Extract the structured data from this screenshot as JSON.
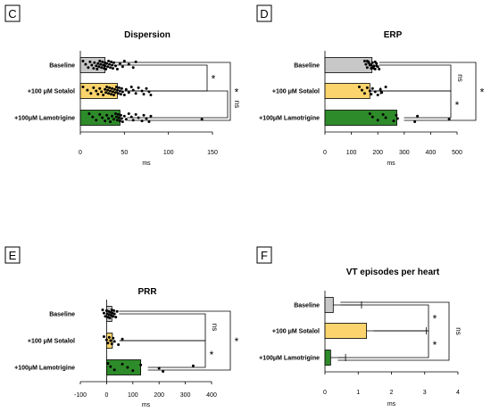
{
  "colors": {
    "baseline": "#c8c8c8",
    "sotalol": "#fbd46d",
    "lamotrigine": "#2e8b2a",
    "points": "#000000"
  },
  "chart_data": [
    {
      "id": "C",
      "panel_letter": "C",
      "type": "bar",
      "orientation": "horizontal",
      "title": "Dispersion",
      "xlabel": "ms",
      "xlim": [
        0,
        150
      ],
      "xticks": [
        "0",
        "50",
        "100",
        "150"
      ],
      "categories": [
        "Baseline",
        "+100 μM Sotalol",
        "+100μM Lamotrigine"
      ],
      "values": [
        28,
        42,
        45
      ],
      "errors": [
        0,
        0,
        0
      ],
      "points": [
        [
          3,
          6,
          9,
          11,
          13,
          15,
          16,
          18,
          19,
          20,
          21,
          22,
          23,
          24,
          25,
          26,
          27,
          28,
          28,
          29,
          30,
          31,
          32,
          33,
          34,
          35,
          36,
          37,
          38,
          40,
          42,
          45,
          48,
          50,
          55,
          60,
          63
        ],
        [
          3,
          8,
          12,
          15,
          18,
          20,
          22,
          24,
          26,
          28,
          29,
          30,
          31,
          32,
          33,
          34,
          35,
          36,
          37,
          38,
          39,
          40,
          41,
          42,
          43,
          44,
          45,
          46,
          47,
          48,
          50,
          52,
          55,
          58,
          60,
          63,
          66,
          70,
          72,
          75,
          78,
          80
        ],
        [
          10,
          14,
          18,
          22,
          25,
          28,
          30,
          32,
          34,
          36,
          38,
          40,
          41,
          42,
          43,
          44,
          45,
          46,
          47,
          48,
          50,
          52,
          55,
          58,
          60,
          63,
          66,
          70,
          72,
          75,
          78,
          80,
          138
        ]
      ],
      "comparisons": [
        {
          "label": "*",
          "pair": [
            0,
            1
          ]
        },
        {
          "label": "ns",
          "pair": [
            1,
            2
          ]
        },
        {
          "label": "*",
          "pair": [
            0,
            2
          ]
        }
      ]
    },
    {
      "id": "D",
      "panel_letter": "D",
      "type": "bar",
      "orientation": "horizontal",
      "title": "ERP",
      "xlabel": "ms",
      "xlim": [
        0,
        500
      ],
      "xticks": [
        "0",
        "100",
        "200",
        "300",
        "400",
        "500"
      ],
      "categories": [
        "Baseline",
        "+100 μM Sotalol",
        "+100μM Lamotrigine"
      ],
      "values": [
        178,
        170,
        272
      ],
      "errors": [
        0,
        40,
        0
      ],
      "points": [
        [
          150,
          155,
          160,
          165,
          170,
          175,
          180,
          185,
          190,
          195,
          200,
          160,
          170,
          180,
          190,
          175,
          185,
          165,
          195,
          205
        ],
        [
          130,
          140,
          150,
          160,
          170,
          175,
          180,
          190,
          200,
          210,
          215,
          230
        ],
        [
          170,
          180,
          200,
          220,
          230,
          260,
          270,
          275,
          340,
          350,
          470
        ]
      ],
      "comparisons": [
        {
          "label": "ns",
          "pair": [
            0,
            1
          ]
        },
        {
          "label": "*",
          "pair": [
            1,
            2
          ]
        },
        {
          "label": "*",
          "pair": [
            0,
            2
          ]
        }
      ]
    },
    {
      "id": "E",
      "panel_letter": "E",
      "type": "bar",
      "orientation": "horizontal",
      "title": "PRR",
      "xlabel": "ms",
      "xlim": [
        -100,
        400
      ],
      "xticks": [
        "-100",
        "0",
        "100",
        "200",
        "300",
        "400"
      ],
      "categories": [
        "Baseline",
        "+100 μM Sotalol",
        "+100μM Lamotrigine"
      ],
      "values": [
        20,
        22,
        130
      ],
      "errors": [
        0,
        0,
        0
      ],
      "points": [
        [
          -15,
          -10,
          -5,
          0,
          2,
          5,
          8,
          10,
          12,
          15,
          18,
          20,
          22,
          25,
          28,
          30,
          35,
          40
        ],
        [
          -10,
          0,
          5,
          10,
          15,
          20,
          25,
          30,
          45,
          60
        ],
        [
          5,
          15,
          30,
          60,
          80,
          100,
          130,
          200,
          215,
          330
        ]
      ],
      "comparisons": [
        {
          "label": "ns",
          "pair": [
            0,
            1
          ]
        },
        {
          "label": "*",
          "pair": [
            1,
            2
          ]
        },
        {
          "label": "*",
          "pair": [
            0,
            2
          ]
        }
      ]
    },
    {
      "id": "F",
      "panel_letter": "F",
      "type": "bar",
      "orientation": "horizontal",
      "title": "VT episodes per heart",
      "xlabel": "ms",
      "xlim": [
        0,
        4
      ],
      "xticks": [
        "0",
        "1",
        "2",
        "3",
        "4"
      ],
      "categories": [
        "Baseline",
        "+100 μM Sotalol",
        "+100μM Lamotrigine"
      ],
      "values": [
        0.25,
        1.25,
        0.17
      ],
      "errors": [
        0.85,
        1.8,
        0.45
      ],
      "points": [
        [],
        [],
        []
      ],
      "comparisons": [
        {
          "label": "*",
          "pair": [
            0,
            1
          ]
        },
        {
          "label": "*",
          "pair": [
            1,
            2
          ]
        },
        {
          "label": "ns",
          "pair": [
            0,
            2
          ]
        }
      ]
    }
  ]
}
